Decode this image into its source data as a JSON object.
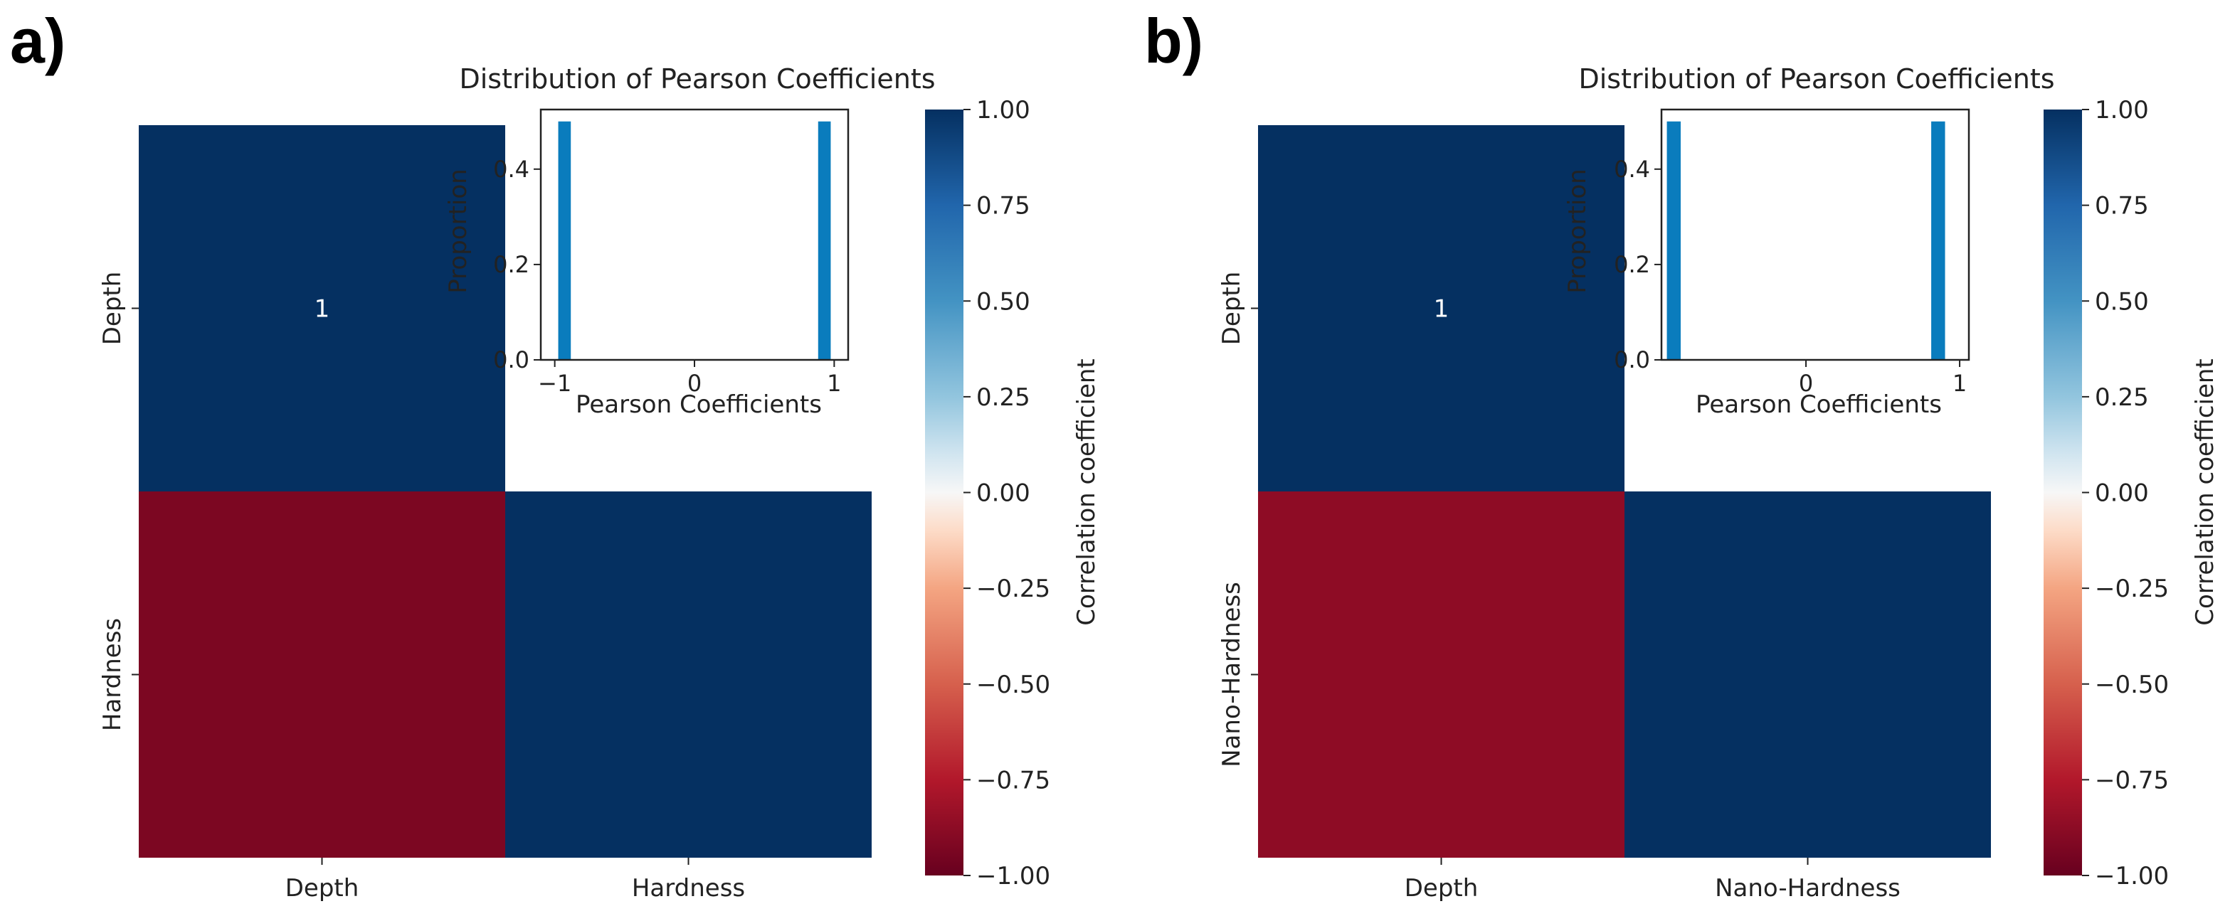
{
  "chart_data": [
    {
      "type": "heatmap",
      "panel_label": "a)",
      "row_labels": [
        "Depth",
        "Hardness"
      ],
      "col_labels": [
        "Depth",
        "Hardness"
      ],
      "matrix": [
        [
          1.0,
          null
        ],
        [
          -0.93,
          1.0
        ]
      ],
      "cell_annotations": [
        [
          "1",
          ""
        ],
        [
          "",
          ""
        ]
      ],
      "colorbar": {
        "label": "Correlation coefficient",
        "range": [
          -1.0,
          1.0
        ],
        "ticks": [
          "1.00",
          "0.75",
          "0.50",
          "0.25",
          "0.00",
          "−0.25",
          "−0.50",
          "−0.75",
          "−1.00"
        ],
        "tick_values": [
          1.0,
          0.75,
          0.5,
          0.25,
          0.0,
          -0.25,
          -0.5,
          -0.75,
          -1.0
        ],
        "colormap": "RdBu"
      },
      "inset": {
        "type": "bar",
        "title": "Distribution of Pearson Coefficients",
        "xlabel": "Pearson Coefficients",
        "ylabel": "Proportion",
        "xlim": [
          -1.1,
          1.1
        ],
        "ylim": [
          0,
          0.525
        ],
        "xticks": [
          "−1",
          "0",
          "1"
        ],
        "xtick_values": [
          -1,
          0,
          1
        ],
        "yticks": [
          "0.0",
          "0.2",
          "0.4"
        ],
        "ytick_values": [
          0,
          0.2,
          0.4
        ],
        "bars": [
          {
            "x": -0.93,
            "width": 0.09,
            "value": 0.5
          },
          {
            "x": 0.93,
            "width": 0.09,
            "value": 0.5
          }
        ],
        "bar_color": "#0a7cbd"
      }
    },
    {
      "type": "heatmap",
      "panel_label": "b)",
      "row_labels": [
        "Depth",
        "Nano-Hardness"
      ],
      "col_labels": [
        "Depth",
        "Nano-Hardness"
      ],
      "matrix": [
        [
          1.0,
          null
        ],
        [
          -0.87,
          1.0
        ]
      ],
      "cell_annotations": [
        [
          "1",
          ""
        ],
        [
          "",
          ""
        ]
      ],
      "colorbar": {
        "label": "Correlation coefficient",
        "range": [
          -1.0,
          1.0
        ],
        "ticks": [
          "1.00",
          "0.75",
          "0.50",
          "0.25",
          "0.00",
          "−0.25",
          "−0.50",
          "−0.75",
          "−1.00"
        ],
        "tick_values": [
          1.0,
          0.75,
          0.5,
          0.25,
          0.0,
          -0.25,
          -0.5,
          -0.75,
          -1.0
        ],
        "colormap": "RdBu"
      },
      "inset": {
        "type": "bar",
        "title": "Distribution of Pearson Coefficients",
        "xlabel": "Pearson Coefficients",
        "ylabel": "Proportion",
        "xlim": [
          -0.94,
          1.06
        ],
        "ylim": [
          0,
          0.525
        ],
        "xticks": [
          "0",
          "1"
        ],
        "xtick_values": [
          0,
          1
        ],
        "yticks": [
          "0.0",
          "0.2",
          "0.4"
        ],
        "ytick_values": [
          0,
          0.2,
          0.4
        ],
        "bars": [
          {
            "x": -0.86,
            "width": 0.09,
            "value": 0.5
          },
          {
            "x": 0.86,
            "width": 0.09,
            "value": 0.5
          }
        ],
        "bar_color": "#0a7cbd"
      }
    }
  ]
}
